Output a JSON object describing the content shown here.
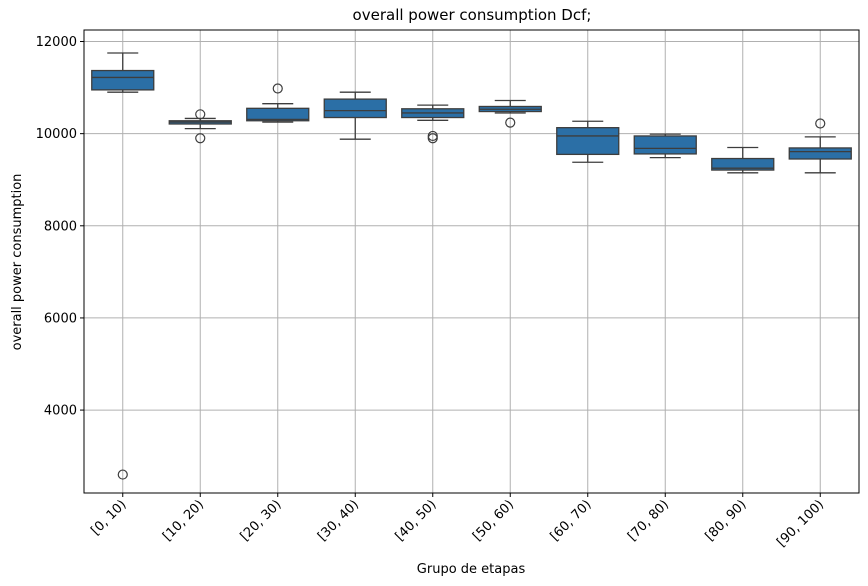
{
  "chart_data": {
    "type": "box",
    "title": "overall power consumption Dcf;",
    "xlabel": "Grupo de etapas",
    "ylabel": "overall power consumption",
    "categories": [
      "[0, 10)",
      "[10, 20)",
      "[20, 30)",
      "[30, 40)",
      "[40, 50)",
      "[50, 60)",
      "[60, 70)",
      "[70, 80)",
      "[80, 90)",
      "[90, 100)"
    ],
    "ylim": [
      2200,
      12250
    ],
    "yticks": [
      4000,
      6000,
      8000,
      10000,
      12000
    ],
    "grid": true,
    "color": "#2b6fa6",
    "boxes": [
      {
        "whisker_low": 10900,
        "q1": 10950,
        "median": 11220,
        "q3": 11370,
        "whisker_high": 11750,
        "outliers": [
          2600
        ]
      },
      {
        "whisker_low": 10110,
        "q1": 10210,
        "median": 10250,
        "q3": 10280,
        "whisker_high": 10330,
        "outliers": [
          9900,
          10420
        ]
      },
      {
        "whisker_low": 10250,
        "q1": 10280,
        "median": 10310,
        "q3": 10550,
        "whisker_high": 10650,
        "outliers": [
          10980
        ]
      },
      {
        "whisker_low": 9880,
        "q1": 10350,
        "median": 10500,
        "q3": 10750,
        "whisker_high": 10900,
        "outliers": []
      },
      {
        "whisker_low": 10290,
        "q1": 10350,
        "median": 10450,
        "q3": 10540,
        "whisker_high": 10620,
        "outliers": [
          9900,
          9950
        ]
      },
      {
        "whisker_low": 10450,
        "q1": 10480,
        "median": 10530,
        "q3": 10590,
        "whisker_high": 10720,
        "outliers": [
          10240
        ]
      },
      {
        "whisker_low": 9380,
        "q1": 9550,
        "median": 9950,
        "q3": 10130,
        "whisker_high": 10270,
        "outliers": []
      },
      {
        "whisker_low": 9480,
        "q1": 9560,
        "median": 9680,
        "q3": 9950,
        "whisker_high": 9990,
        "outliers": []
      },
      {
        "whisker_low": 9150,
        "q1": 9210,
        "median": 9250,
        "q3": 9460,
        "whisker_high": 9700,
        "outliers": []
      },
      {
        "whisker_low": 9150,
        "q1": 9450,
        "median": 9610,
        "q3": 9690,
        "whisker_high": 9930,
        "outliers": [
          10220
        ]
      }
    ]
  }
}
